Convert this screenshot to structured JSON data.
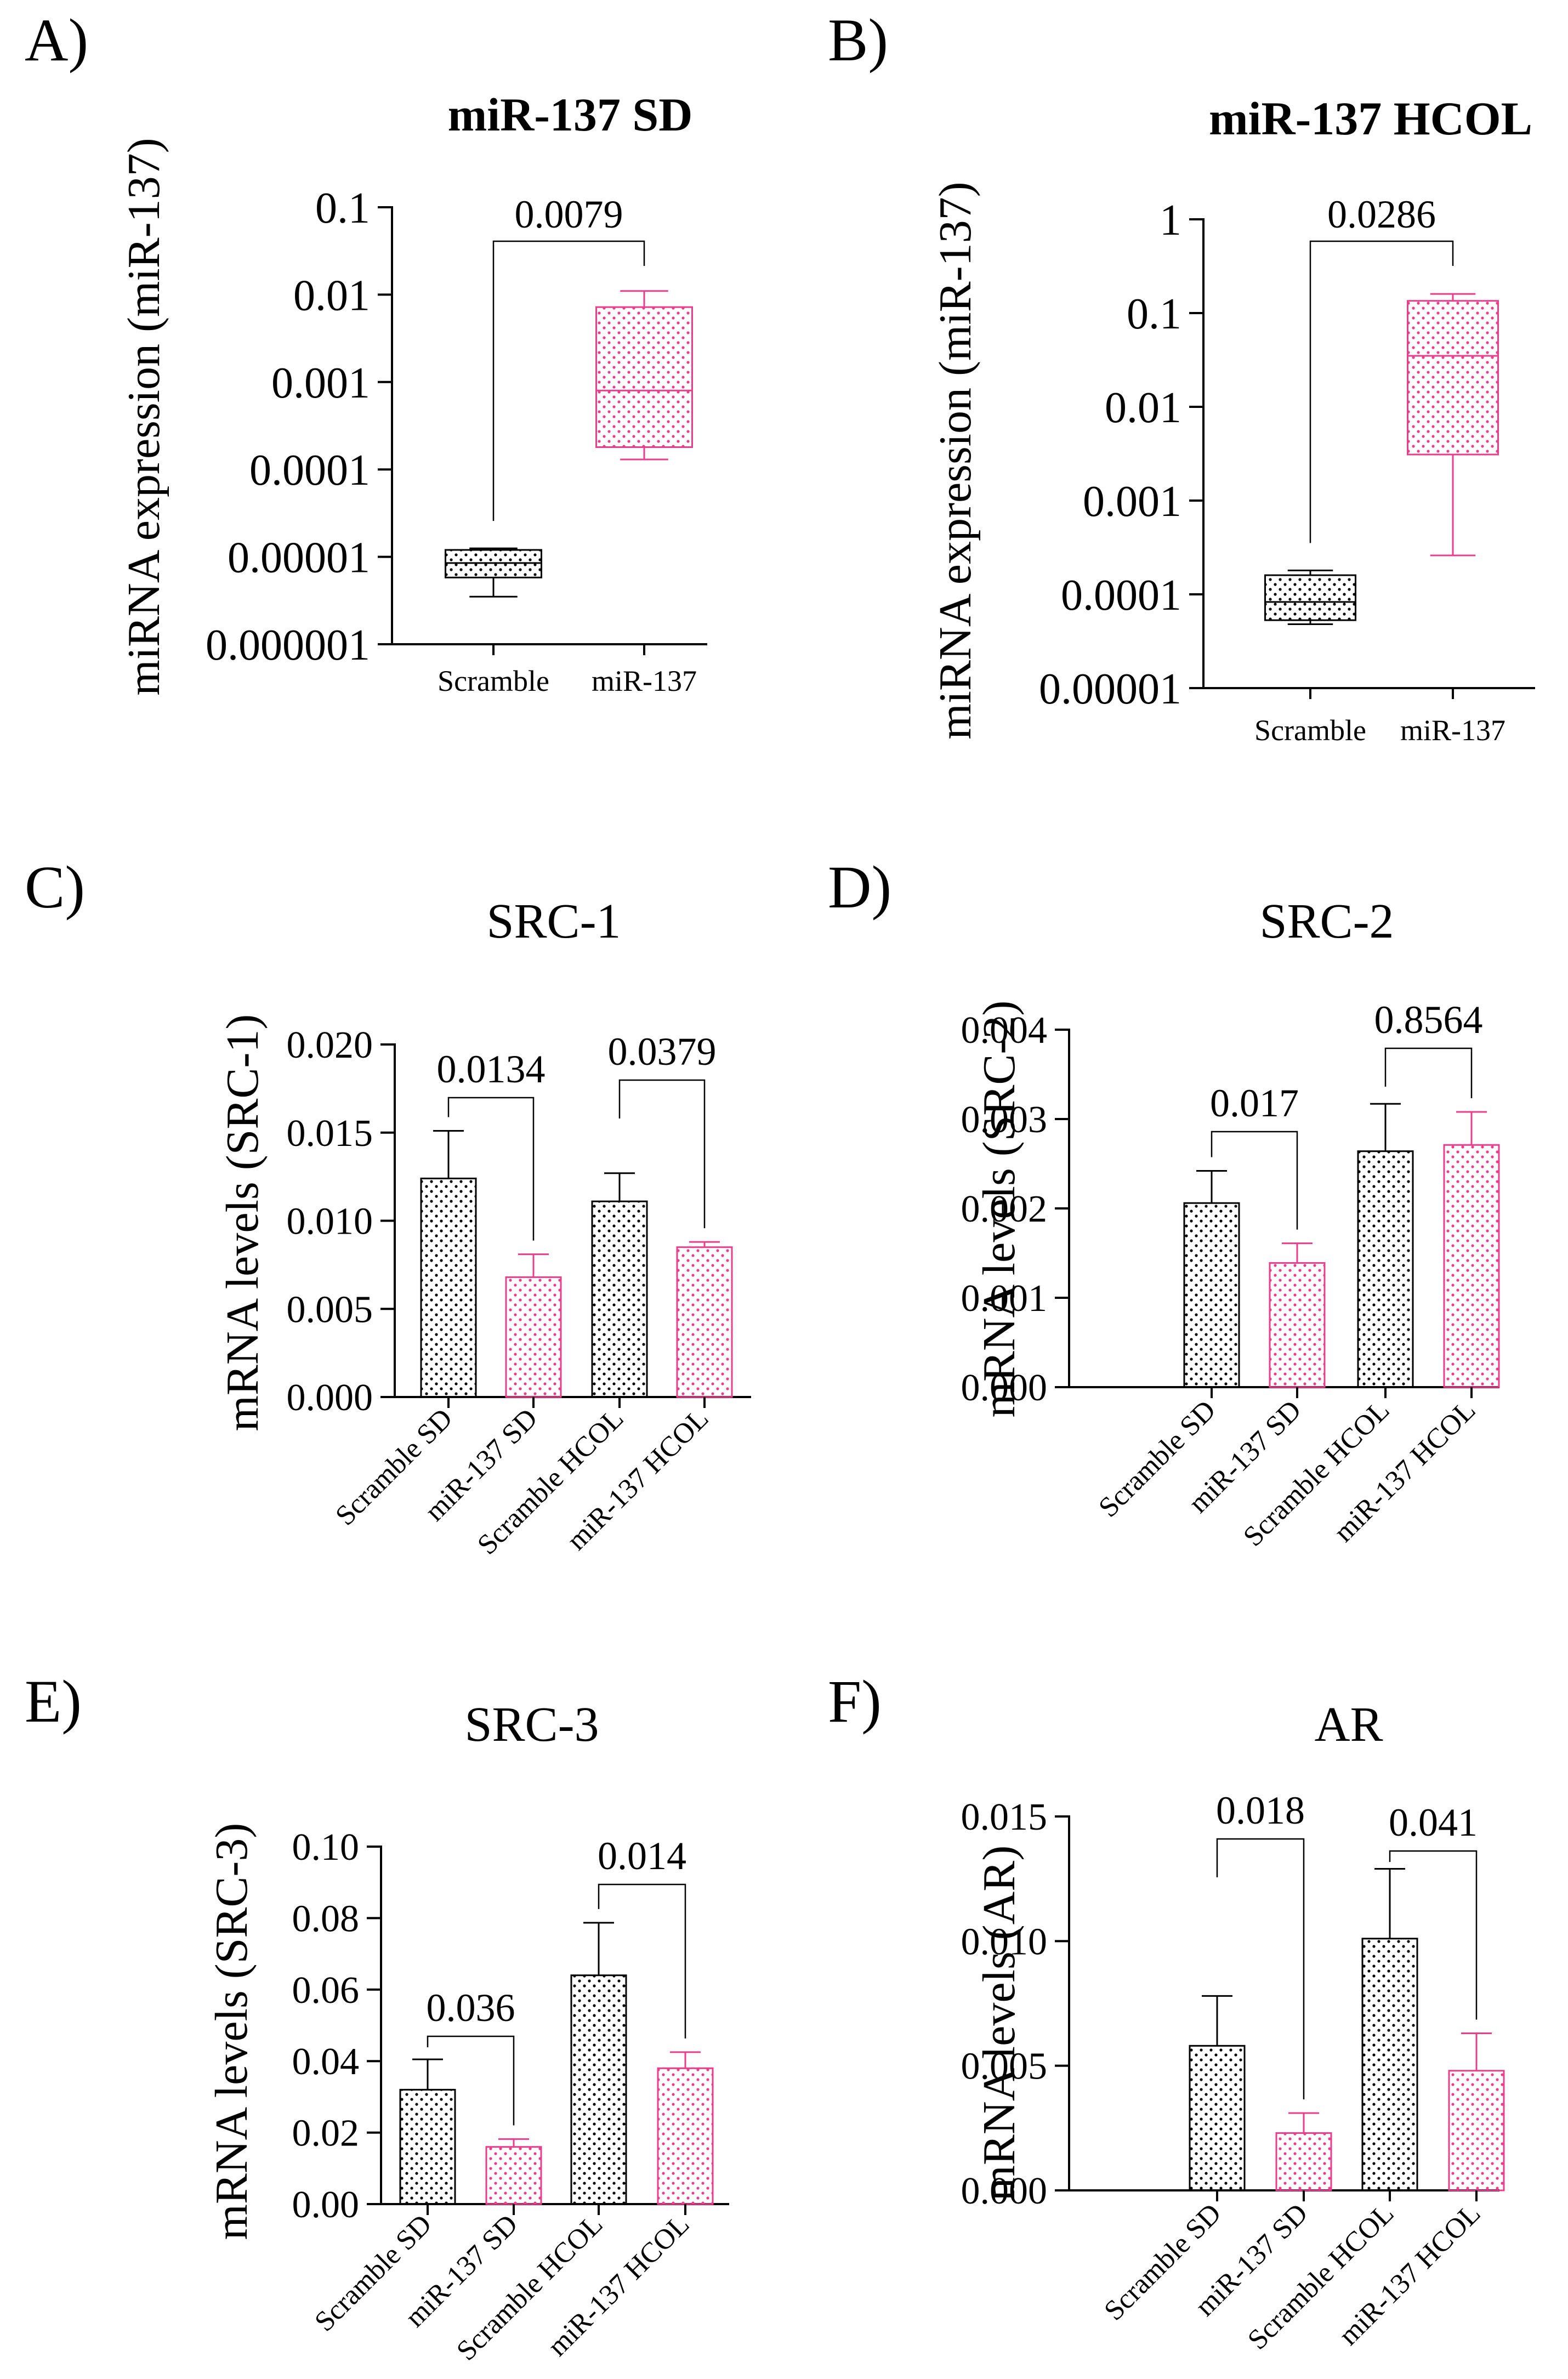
{
  "colors": {
    "black": "#000000",
    "pink": "#e83e8c"
  },
  "chart_data": [
    {
      "panel": "A)",
      "type": "box",
      "title": "miR-137 SD",
      "ylabel": "miRNA expression (miR-137)",
      "yscale": "log",
      "ylim": [
        1e-06,
        0.1
      ],
      "yticks": [
        "0.1",
        "0.01",
        "0.001",
        "0.0001",
        "0.00001",
        "0.000001"
      ],
      "categories": [
        "Scramble",
        "miR-137"
      ],
      "boxes": [
        {
          "name": "Scramble",
          "min": 3.5e-06,
          "q1": 5.8e-06,
          "median": 8.5e-06,
          "q3": 1.2e-05,
          "max": 1.25e-05,
          "color": "#000000"
        },
        {
          "name": "miR-137",
          "min": 0.00013,
          "q1": 0.00018,
          "median": 0.0008,
          "q3": 0.0072,
          "max": 0.011,
          "color": "#e83e8c"
        }
      ],
      "comparisons": [
        {
          "from": 0,
          "to": 1,
          "p": "0.0079"
        }
      ]
    },
    {
      "panel": "B)",
      "type": "box",
      "title": "miR-137 HCOL",
      "ylabel": "miRNA expression (miR-137)",
      "yscale": "log",
      "ylim": [
        1e-05,
        1
      ],
      "yticks": [
        "1",
        "0.1",
        "0.01",
        "0.001",
        "0.0001",
        "0.00001"
      ],
      "categories": [
        "Scramble",
        "miR-137"
      ],
      "boxes": [
        {
          "name": "Scramble",
          "min": 4.8e-05,
          "q1": 5.3e-05,
          "median": 8.3e-05,
          "q3": 0.00016,
          "max": 0.00018,
          "color": "#000000"
        },
        {
          "name": "miR-137",
          "min": 0.00026,
          "q1": 0.0031,
          "median": 0.035,
          "q3": 0.135,
          "max": 0.16,
          "color": "#e83e8c"
        }
      ],
      "comparisons": [
        {
          "from": 0,
          "to": 1,
          "p": "0.0286"
        }
      ]
    },
    {
      "panel": "C)",
      "type": "bar",
      "title": "SRC-1",
      "ylabel": "mRNA levels (SRC-1)",
      "ylim": [
        0,
        0.02
      ],
      "yticks": [
        "0.000",
        "0.005",
        "0.010",
        "0.015",
        "0.020"
      ],
      "categories": [
        "Scramble SD",
        "miR-137 SD",
        "Scramble HCOL",
        "miR-137 HCOL"
      ],
      "values": [
        0.0124,
        0.0068,
        0.0111,
        0.0085
      ],
      "errors": [
        0.0027,
        0.0013,
        0.0016,
        0.0003
      ],
      "colors": [
        "#000000",
        "#e83e8c",
        "#000000",
        "#e83e8c"
      ],
      "comparisons": [
        {
          "from": 0,
          "to": 1,
          "p": "0.0134"
        },
        {
          "from": 2,
          "to": 3,
          "p": "0.0379"
        }
      ]
    },
    {
      "panel": "D)",
      "type": "bar",
      "title": "SRC-2",
      "ylabel": "mRNA levels (SRC-2)",
      "ylim": [
        0,
        0.004
      ],
      "yticks": [
        "0.000",
        "0.001",
        "0.002",
        "0.003",
        "0.004"
      ],
      "categories": [
        "Scramble SD",
        "miR-137 SD",
        "Scramble HCOL",
        "miR-137 HCOL"
      ],
      "values": [
        0.00206,
        0.00139,
        0.00264,
        0.00271
      ],
      "errors": [
        0.00036,
        0.00022,
        0.00053,
        0.00037
      ],
      "colors": [
        "#000000",
        "#e83e8c",
        "#000000",
        "#e83e8c"
      ],
      "comparisons": [
        {
          "from": 0,
          "to": 1,
          "p": "0.017"
        },
        {
          "from": 2,
          "to": 3,
          "p": "0.8564"
        }
      ]
    },
    {
      "panel": "E)",
      "type": "bar",
      "title": "SRC-3",
      "ylabel": "mRNA levels (SRC-3)",
      "ylim": [
        0,
        0.1
      ],
      "yticks": [
        "0.00",
        "0.02",
        "0.04",
        "0.06",
        "0.08",
        "0.10"
      ],
      "categories": [
        "Scramble SD",
        "miR-137 SD",
        "Scramble HCOL",
        "miR-137 HCOL"
      ],
      "values": [
        0.032,
        0.016,
        0.064,
        0.038
      ],
      "errors": [
        0.0085,
        0.0022,
        0.0147,
        0.0045
      ],
      "colors": [
        "#000000",
        "#e83e8c",
        "#000000",
        "#e83e8c"
      ],
      "comparisons": [
        {
          "from": 0,
          "to": 1,
          "p": "0.036"
        },
        {
          "from": 2,
          "to": 3,
          "p": "0.014"
        }
      ]
    },
    {
      "panel": "F)",
      "type": "bar",
      "title": "AR",
      "ylabel": "mRNA levels (AR)",
      "ylim": [
        0,
        0.015
      ],
      "yticks": [
        "0.000",
        "0.005",
        "0.010",
        "0.015"
      ],
      "categories": [
        "Scramble SD",
        "miR-137 SD",
        "Scramble HCOL",
        "miR-137 HCOL"
      ],
      "values": [
        0.0058,
        0.0023,
        0.0101,
        0.0048
      ],
      "errors": [
        0.002,
        0.0008,
        0.0028,
        0.0015
      ],
      "colors": [
        "#000000",
        "#e83e8c",
        "#000000",
        "#e83e8c"
      ],
      "comparisons": [
        {
          "from": 0,
          "to": 1,
          "p": "0.018"
        },
        {
          "from": 2,
          "to": 3,
          "p": "0.041"
        }
      ]
    }
  ]
}
